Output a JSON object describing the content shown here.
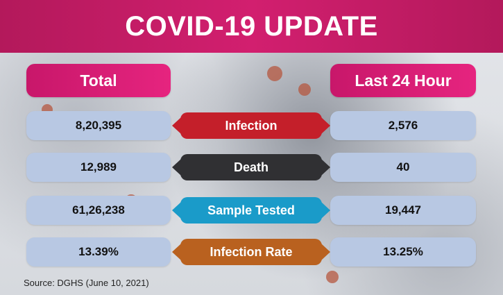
{
  "header": {
    "title": "COVID-19 UPDATE"
  },
  "columns": {
    "total": "Total",
    "last24": "Last 24 Hour"
  },
  "rows": [
    {
      "label": "Infection",
      "total": "8,20,395",
      "last24": "2,576",
      "color": "#c41f2a"
    },
    {
      "label": "Death",
      "total": "12,989",
      "last24": "40",
      "color": "#303033"
    },
    {
      "label": "Sample Tested",
      "total": "61,26,238",
      "last24": "19,447",
      "color": "#1a9bc9"
    },
    {
      "label": "Infection Rate",
      "total": "13.39%",
      "last24": "13.25%",
      "color": "#b9611f"
    }
  ],
  "source": "Source: DGHS (June 10, 2021)",
  "colors": {
    "header": "#c41f66",
    "pill": "#d81f75",
    "value_box": "#b8c8e3"
  }
}
